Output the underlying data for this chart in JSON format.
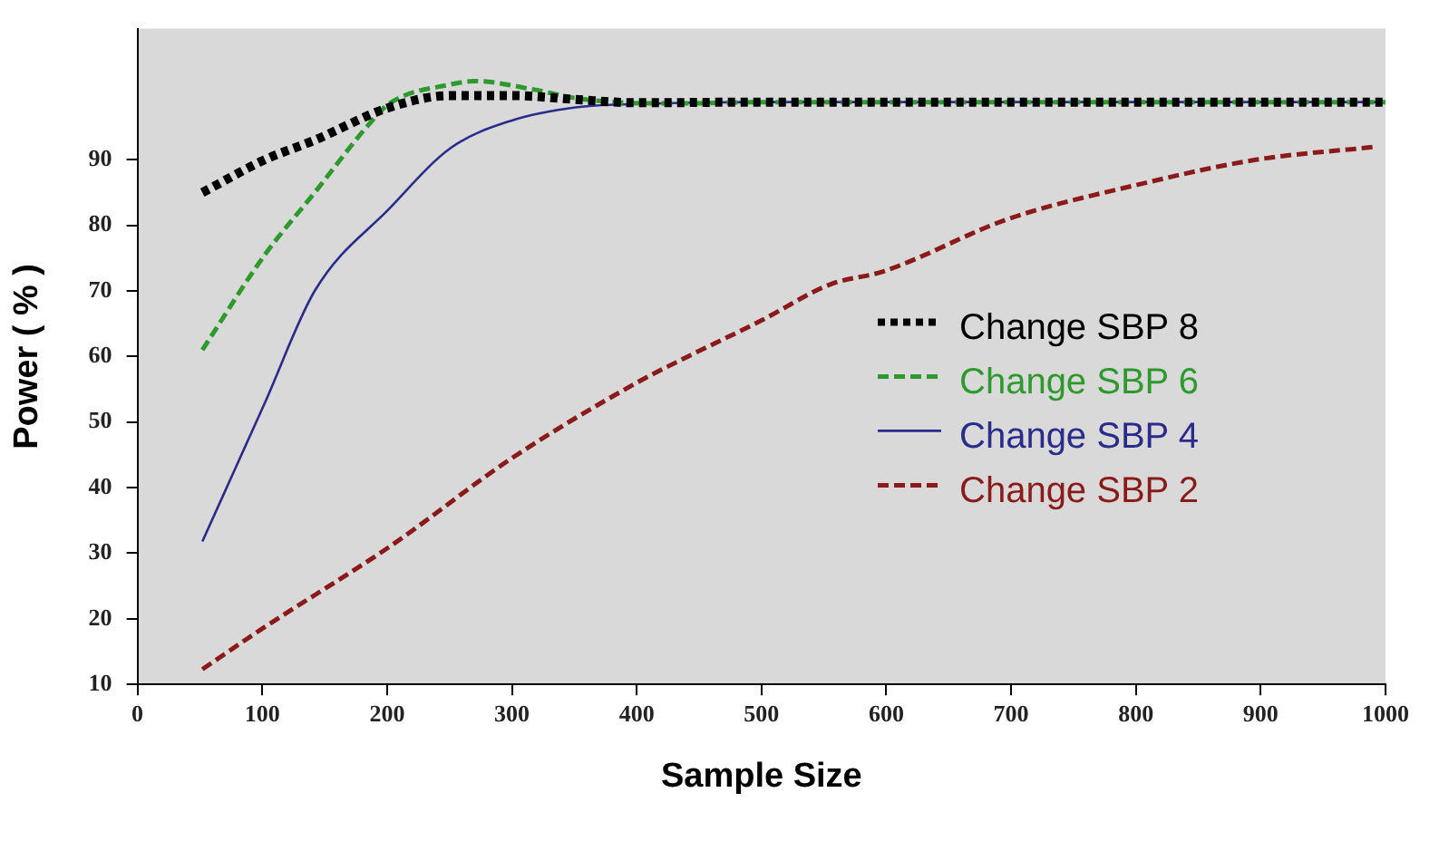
{
  "chart_data": {
    "type": "line",
    "xlabel": "Sample Size",
    "ylabel": "Power ( % )",
    "xlim": [
      0,
      1000
    ],
    "xticks": [
      0,
      100,
      200,
      300,
      400,
      500,
      600,
      700,
      800,
      900,
      1000
    ],
    "ylim": [
      10,
      110
    ],
    "yticks": [
      10,
      20,
      30,
      40,
      50,
      60,
      70,
      80,
      90
    ],
    "grid": false,
    "legend": "right",
    "marker": "none",
    "series": [
      {
        "name": "Change SBP 8",
        "color": "#000000",
        "line_style": "dotted",
        "x": [
          52,
          102,
          142,
          202,
          251,
          300,
          351,
          400,
          500,
          600,
          700,
          800,
          900,
          1000
        ],
        "values": [
          85,
          90,
          93,
          98,
          99.8,
          99.8,
          99.2,
          98.7,
          98.8,
          98.8,
          98.8,
          98.8,
          98.8,
          98.8
        ]
      },
      {
        "name": "Change SBP 6",
        "color": "#2e9a2e",
        "line_style": "dashed",
        "x": [
          52,
          102,
          142,
          185,
          202,
          251,
          270,
          318,
          351,
          412,
          441,
          500,
          600,
          800,
          1000
        ],
        "values": [
          61,
          75.5,
          85,
          95.3,
          98.6,
          101.5,
          102,
          100.7,
          99.4,
          98.6,
          98.6,
          98.8,
          98.8,
          98.8,
          98.8
        ]
      },
      {
        "name": "Change SBP 4",
        "color": "#2b2b8c",
        "line_style": "solid",
        "x": [
          52,
          102,
          142,
          202,
          251,
          300,
          351,
          400,
          500,
          700,
          1000
        ],
        "values": [
          31.8,
          52.9,
          70,
          82.6,
          91.8,
          96,
          98,
          98.5,
          98.8,
          98.8,
          98.8
        ]
      },
      {
        "name": "Change SBP 2",
        "color": "#8b1a1a",
        "line_style": "dashed",
        "x": [
          52,
          100,
          202,
          300,
          400,
          441,
          500,
          555,
          598,
          698,
          797,
          896,
          993
        ],
        "values": [
          12.3,
          18.5,
          31,
          44.5,
          56,
          60,
          65.5,
          71,
          73,
          81,
          86,
          90,
          92
        ]
      }
    ]
  }
}
